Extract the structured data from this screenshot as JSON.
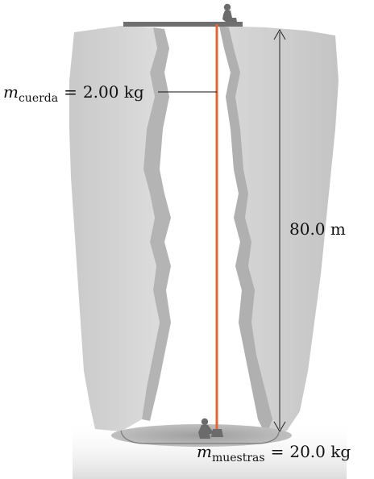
{
  "labels": {
    "rope_mass_symbol": "m",
    "rope_mass_subscript": "cuerda",
    "rope_mass_equals": "=",
    "rope_mass_value": "2.00 kg",
    "depth_value": "80.0 m",
    "sample_mass_symbol": "m",
    "sample_mass_subscript": "muestras",
    "sample_mass_equals": "=",
    "sample_mass_value": "20.0 kg"
  },
  "colors": {
    "rope": "#e8642c",
    "rock_light": "#d4d4d4",
    "rock_mid": "#bdbdbd",
    "rock_dark": "#a8a8a8",
    "plank": "#6f6f6f",
    "person": "#6b6b6b",
    "arrow": "#222222"
  }
}
